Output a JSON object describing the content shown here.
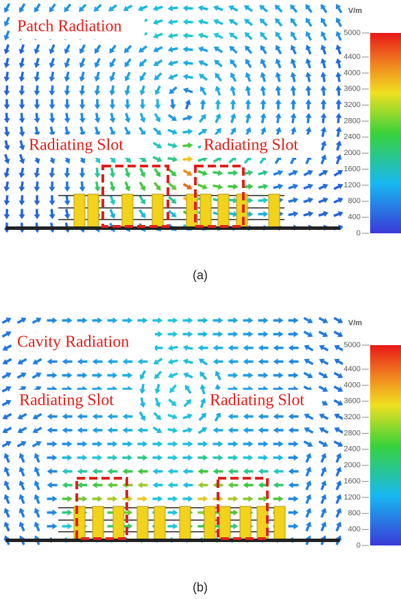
{
  "panels": [
    {
      "title": "Patch Radiation",
      "slot_labels": [
        "Radiating Slot",
        "Radiating Slot"
      ],
      "caption": "(a)",
      "colorbar": {
        "unit": "V/m",
        "ticks": [
          0,
          400,
          800,
          1200,
          1600,
          2000,
          2400,
          2800,
          3200,
          3600,
          4000,
          4400,
          5000
        ]
      }
    },
    {
      "title": "Cavity Radiation",
      "slot_labels": [
        "Radiating Slot",
        "Radiating Slot"
      ],
      "caption": "(b)",
      "colorbar": {
        "unit": "V/m",
        "ticks": [
          0,
          400,
          800,
          1200,
          1600,
          2000,
          2400,
          2800,
          3200,
          3600,
          4000,
          4400,
          5000
        ]
      }
    }
  ]
}
